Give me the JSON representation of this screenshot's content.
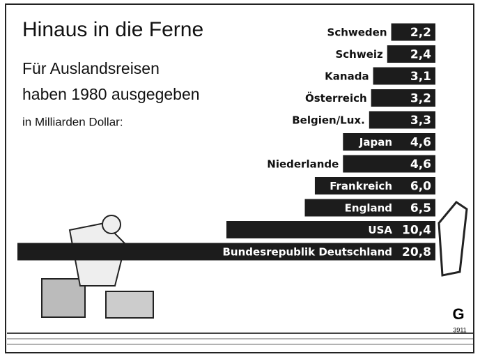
{
  "chart_data": {
    "type": "bar",
    "orientation": "horizontal",
    "title": "Hinaus in die Ferne",
    "subtitle": [
      "Für Auslandsreisen",
      "haben 1980 ausgegeben",
      "in Milliarden Dollar:"
    ],
    "categories": [
      "Schweden",
      "Schweiz",
      "Kanada",
      "Österreich",
      "Belgien/Lux.",
      "Japan",
      "Niederlande",
      "Frankreich",
      "England",
      "USA",
      "Bundesrepublik Deutschland"
    ],
    "values": [
      2.2,
      2.4,
      3.1,
      3.2,
      3.3,
      4.6,
      4.6,
      6.0,
      6.5,
      10.4,
      20.8
    ],
    "value_labels": [
      "2,2",
      "2,4",
      "3,1",
      "3,2",
      "3,3",
      "4,6",
      "4,6",
      "6,0",
      "6,5",
      "10,4",
      "20,8"
    ],
    "color": "#1c1c1c",
    "source_mark": {
      "logo": "G",
      "code": "3911"
    }
  }
}
